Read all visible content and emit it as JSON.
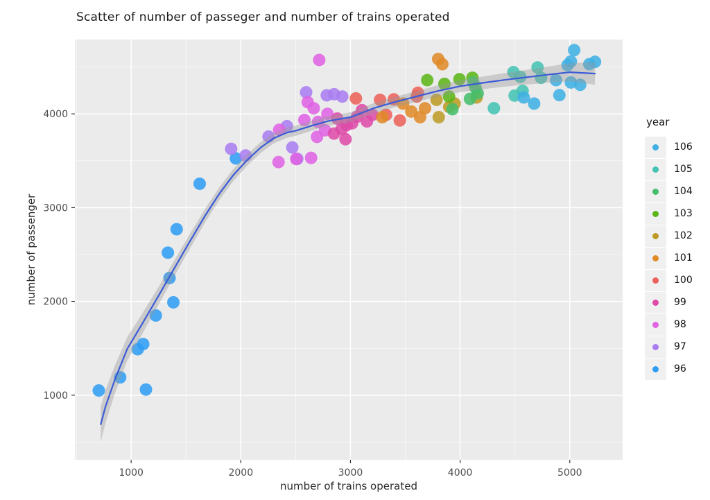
{
  "chart_data": {
    "type": "scatter",
    "title": "Scatter of number of passeger and number of trains operated",
    "xlabel": "number of trains operated",
    "ylabel": "number of passenger",
    "xlim": [
      487,
      5482
    ],
    "ylim": [
      311,
      4793
    ],
    "x_ticks": [
      1000,
      2000,
      3000,
      4000,
      5000
    ],
    "y_ticks": [
      1000,
      2000,
      3000,
      4000
    ],
    "x_minor_ticks": [
      500,
      1500,
      2500,
      3500,
      4500
    ],
    "y_minor_ticks": [
      500,
      1500,
      2500,
      3500,
      4500
    ],
    "grid": true,
    "panel_bg": "#EBEBEB",
    "grid_color": "#FFFFFF",
    "tick_color": "#333333",
    "tick_label_color": "#4d4d4d",
    "legend": {
      "title": "year",
      "position": "right",
      "order": [
        "106",
        "105",
        "104",
        "103",
        "102",
        "101",
        "100",
        "99",
        "98",
        "97",
        "96"
      ]
    },
    "series": [
      {
        "name": "96",
        "color": "#2F9DF3",
        "points": [
          [
            705,
            1050
          ],
          [
            900,
            1190
          ],
          [
            1135,
            1060
          ],
          [
            1060,
            1490
          ],
          [
            1110,
            1545
          ],
          [
            1225,
            1850
          ],
          [
            1385,
            1990
          ],
          [
            1350,
            2250
          ],
          [
            1335,
            2520
          ],
          [
            1415,
            2770
          ],
          [
            1625,
            3255
          ],
          [
            1955,
            3525
          ]
        ]
      },
      {
        "name": "97",
        "color": "#A97DF0",
        "points": [
          [
            1912,
            3627
          ],
          [
            2044,
            3556
          ],
          [
            2253,
            3758
          ],
          [
            2421,
            3869
          ],
          [
            2470,
            3642
          ],
          [
            2515,
            3520
          ],
          [
            2596,
            4230
          ],
          [
            2784,
            4198
          ],
          [
            2851,
            4210
          ],
          [
            2925,
            4185
          ]
        ]
      },
      {
        "name": "98",
        "color": "#DF63E3",
        "points": [
          [
            2344,
            3486
          ],
          [
            2505,
            3519
          ],
          [
            2641,
            3531
          ],
          [
            2350,
            3830
          ],
          [
            2580,
            3935
          ],
          [
            2610,
            4125
          ],
          [
            2665,
            4060
          ],
          [
            2715,
            4575
          ],
          [
            2790,
            4000
          ],
          [
            2768,
            3825
          ],
          [
            2695,
            3755
          ],
          [
            2705,
            3915
          ]
        ]
      },
      {
        "name": "99",
        "color": "#DE4BA8",
        "points": [
          [
            2850,
            3790
          ],
          [
            2880,
            3950
          ],
          [
            2920,
            3840
          ],
          [
            2965,
            3880
          ],
          [
            3015,
            3900
          ],
          [
            3060,
            3970
          ],
          [
            3105,
            4040
          ],
          [
            2955,
            3730
          ],
          [
            3150,
            3920
          ],
          [
            3200,
            3990
          ]
        ]
      },
      {
        "name": "100",
        "color": "#ED615A",
        "points": [
          [
            3050,
            4165
          ],
          [
            3270,
            4150
          ],
          [
            3325,
            3990
          ],
          [
            3395,
            4155
          ],
          [
            3450,
            3930
          ],
          [
            3605,
            4185
          ],
          [
            3615,
            4225
          ]
        ]
      },
      {
        "name": "101",
        "color": "#E08A28",
        "points": [
          [
            3290,
            3965
          ],
          [
            3480,
            4110
          ],
          [
            3555,
            4025
          ],
          [
            3635,
            3965
          ],
          [
            3680,
            4060
          ],
          [
            3800,
            4585
          ],
          [
            3838,
            4530
          ]
        ]
      },
      {
        "name": "102",
        "color": "#BD9B26",
        "points": [
          [
            3785,
            4150
          ],
          [
            3805,
            3965
          ],
          [
            3900,
            4075
          ],
          [
            3950,
            4110
          ],
          [
            4150,
            4175
          ]
        ]
      },
      {
        "name": "103",
        "color": "#5CB517",
        "points": [
          [
            3700,
            4360
          ],
          [
            3857,
            4320
          ],
          [
            3994,
            4370
          ],
          [
            4112,
            4385
          ],
          [
            3899,
            4185
          ]
        ]
      },
      {
        "name": "104",
        "color": "#45BE6B",
        "points": [
          [
            3930,
            4050
          ],
          [
            4090,
            4160
          ],
          [
            4160,
            4220
          ],
          [
            4120,
            4335
          ],
          [
            4140,
            4280
          ]
        ]
      },
      {
        "name": "105",
        "color": "#44C2B2",
        "points": [
          [
            4308,
            4060
          ],
          [
            4486,
            4445
          ],
          [
            4549,
            4395
          ],
          [
            4570,
            4245
          ],
          [
            4706,
            4495
          ],
          [
            4738,
            4385
          ],
          [
            4497,
            4195
          ]
        ]
      },
      {
        "name": "106",
        "color": "#3FB0E4",
        "points": [
          [
            4580,
            4175
          ],
          [
            4675,
            4110
          ],
          [
            4875,
            4360
          ],
          [
            4905,
            4200
          ],
          [
            4980,
            4520
          ],
          [
            5010,
            4560
          ],
          [
            5010,
            4335
          ],
          [
            5040,
            4680
          ],
          [
            5095,
            4310
          ],
          [
            5178,
            4530
          ],
          [
            5230,
            4555
          ]
        ]
      }
    ],
    "smooth_line": {
      "color": "#3B5BD7",
      "band_color": "#999999",
      "band_opacity": 0.4,
      "points": [
        [
          723,
          690
        ],
        [
          765,
          875
        ],
        [
          850,
          1160
        ],
        [
          965,
          1495
        ],
        [
          1090,
          1740
        ],
        [
          1240,
          2040
        ],
        [
          1385,
          2335
        ],
        [
          1530,
          2630
        ],
        [
          1680,
          2925
        ],
        [
          1805,
          3150
        ],
        [
          1930,
          3345
        ],
        [
          2060,
          3510
        ],
        [
          2180,
          3640
        ],
        [
          2300,
          3740
        ],
        [
          2420,
          3800
        ],
        [
          2500,
          3820
        ],
        [
          2650,
          3875
        ],
        [
          2800,
          3925
        ],
        [
          3000,
          3965
        ],
        [
          3210,
          4060
        ],
        [
          3400,
          4125
        ],
        [
          3600,
          4185
        ],
        [
          3800,
          4245
        ],
        [
          4000,
          4295
        ],
        [
          4200,
          4330
        ],
        [
          4400,
          4362
        ],
        [
          4600,
          4390
        ],
        [
          4800,
          4418
        ],
        [
          5000,
          4445
        ],
        [
          5230,
          4430
        ]
      ],
      "half_widths": [
        190,
        175,
        150,
        125,
        110,
        95,
        85,
        78,
        72,
        68,
        64,
        60,
        58,
        56,
        55,
        54,
        53,
        52,
        52,
        53,
        55,
        58,
        60,
        63,
        67,
        72,
        78,
        86,
        96,
        120
      ]
    }
  }
}
